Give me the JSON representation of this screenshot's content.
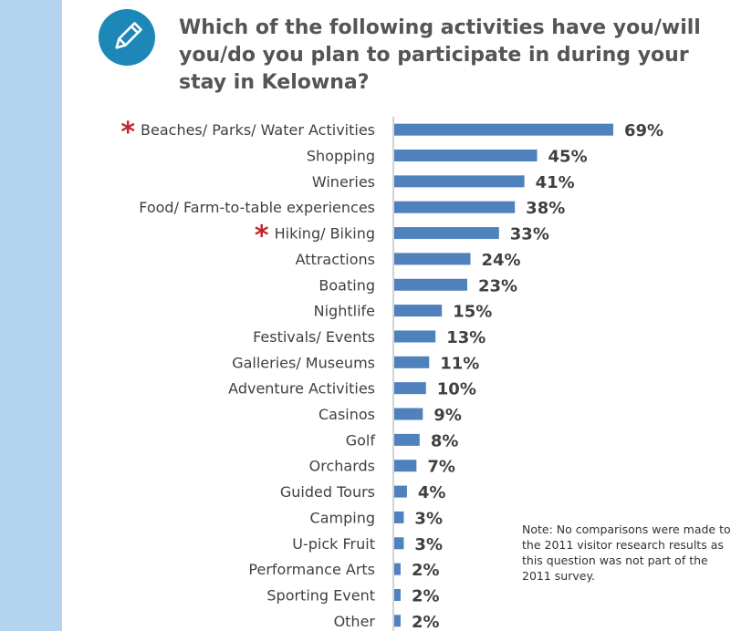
{
  "question": "Which of the following activities have you/will you/do you plan to participate in during your stay in Kelowna?",
  "note": "Note: No comparisons were made to the 2011 visitor research results as this question was not part of the 2011 survey.",
  "colors": {
    "bar": "#4f81bd",
    "star": "#c0262d",
    "side_band": "#b3d3ee",
    "icon": "#1d87b8"
  },
  "icon": "pencil-icon",
  "chart_data": {
    "type": "bar",
    "orientation": "horizontal",
    "categories": [
      "Beaches/ Parks/ Water Activities",
      "Shopping",
      "Wineries",
      "Food/ Farm-to-table experiences",
      "Hiking/ Biking",
      "Attractions",
      "Boating",
      "Nightlife",
      "Festivals/ Events",
      "Galleries/ Museums",
      "Adventure Activities",
      "Casinos",
      "Golf",
      "Orchards",
      "Guided Tours",
      "Camping",
      "U-pick Fruit",
      "Performance Arts",
      "Sporting Event",
      "Other"
    ],
    "values": [
      69,
      45,
      41,
      38,
      33,
      24,
      23,
      15,
      13,
      11,
      10,
      9,
      8,
      7,
      4,
      3,
      3,
      2,
      2,
      2
    ],
    "value_labels": [
      "69%",
      "45%",
      "41%",
      "38%",
      "33%",
      "24%",
      "23%",
      "15%",
      "13%",
      "11%",
      "10%",
      "9%",
      "8%",
      "7%",
      "4%",
      "3%",
      "3%",
      "2%",
      "2%",
      "2%"
    ],
    "starred": [
      "Beaches/ Parks/ Water Activities",
      "Hiking/ Biking"
    ],
    "star_symbol": "*",
    "unit": "%",
    "xlim": [
      0,
      69
    ],
    "grid": false,
    "legend": "none"
  }
}
